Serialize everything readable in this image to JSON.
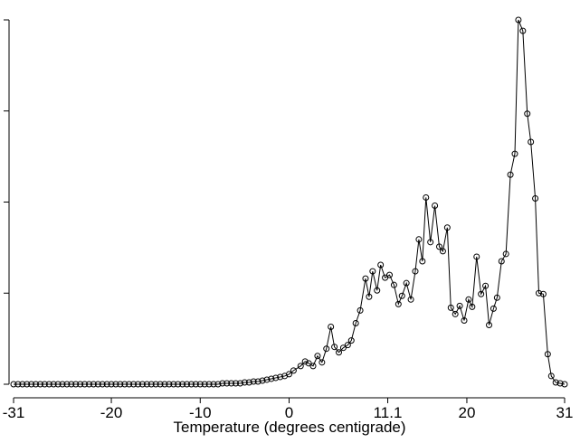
{
  "chart_data": {
    "type": "line",
    "xlabel": "Temperature (degrees centigrade)",
    "xlim": [
      -31,
      31
    ],
    "xticks": [
      -31,
      -20,
      -10,
      0,
      11.1,
      20,
      31
    ],
    "ylim": [
      0,
      4
    ],
    "yticks": [
      0,
      1,
      2,
      3,
      4
    ],
    "color": "#000000",
    "marker": "circle",
    "x": [
      -31,
      -30.5,
      -30,
      -29.5,
      -29,
      -28.5,
      -28,
      -27.5,
      -27,
      -26.5,
      -26,
      -25.5,
      -25,
      -24.5,
      -24,
      -23.5,
      -23,
      -22.5,
      -22,
      -21.5,
      -21,
      -20.5,
      -20,
      -19.5,
      -19,
      -18.5,
      -18,
      -17.5,
      -17,
      -16.5,
      -16,
      -15.5,
      -15,
      -14.5,
      -14,
      -13.5,
      -13,
      -12.5,
      -12,
      -11.5,
      -11,
      -10.5,
      -10,
      -9.5,
      -9,
      -8.5,
      -8,
      -7.5,
      -7,
      -6.5,
      -6,
      -5.5,
      -5,
      -4.5,
      -4,
      -3.5,
      -3,
      -2.5,
      -2,
      -1.5,
      -1,
      -0.5,
      0,
      0.5,
      1.3,
      1.8,
      2.2,
      2.7,
      3.2,
      3.7,
      4.2,
      4.7,
      5.1,
      5.6,
      6.1,
      6.6,
      7.0,
      7.5,
      8.0,
      8.6,
      9.0,
      9.4,
      9.9,
      10.3,
      10.8,
      11.3,
      11.8,
      12.3,
      12.7,
      13.2,
      13.7,
      14.2,
      14.6,
      15.0,
      15.4,
      15.9,
      16.4,
      16.9,
      17.3,
      17.8,
      18.2,
      18.7,
      19.2,
      19.7,
      20.2,
      20.6,
      21.1,
      21.6,
      22.1,
      22.5,
      23.0,
      23.4,
      23.9,
      24.4,
      24.9,
      25.4,
      25.8,
      26.3,
      26.8,
      27.2,
      27.7,
      28.1,
      28.6,
      29.1,
      29.5,
      30.0,
      30.5,
      31.0
    ],
    "values": [
      0,
      0,
      0,
      0,
      0,
      0,
      0,
      0,
      0,
      0,
      0,
      0,
      0,
      0,
      0,
      0,
      0,
      0,
      0,
      0,
      0,
      0,
      0,
      0,
      0,
      0,
      0,
      0,
      0,
      0,
      0,
      0,
      0,
      0,
      0,
      0,
      0,
      0,
      0,
      0,
      0,
      0,
      0,
      0,
      0,
      0,
      0,
      0.01,
      0.01,
      0.01,
      0.01,
      0.01,
      0.02,
      0.02,
      0.03,
      0.03,
      0.04,
      0.05,
      0.06,
      0.07,
      0.08,
      0.09,
      0.11,
      0.15,
      0.2,
      0.25,
      0.23,
      0.2,
      0.31,
      0.24,
      0.39,
      0.63,
      0.41,
      0.35,
      0.4,
      0.43,
      0.48,
      0.67,
      0.81,
      1.16,
      0.96,
      1.24,
      1.03,
      1.31,
      1.17,
      1.2,
      1.09,
      0.88,
      0.97,
      1.11,
      0.93,
      1.24,
      1.59,
      1.35,
      2.05,
      1.56,
      1.96,
      1.51,
      1.46,
      1.72,
      0.84,
      0.77,
      0.86,
      0.7,
      0.93,
      0.85,
      1.4,
      0.99,
      1.08,
      0.65,
      0.83,
      0.95,
      1.35,
      1.43,
      2.3,
      2.53,
      4.0,
      3.88,
      2.97,
      2.66,
      2.04,
      1.0,
      0.99,
      0.33,
      0.09,
      0.02,
      0.01,
      0
    ]
  }
}
